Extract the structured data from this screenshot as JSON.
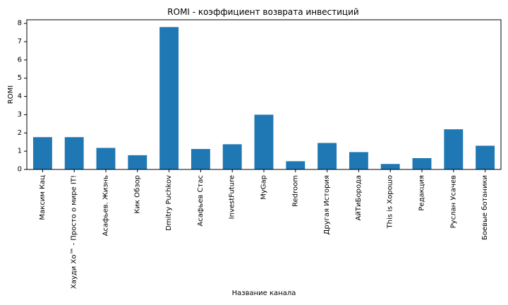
{
  "chart_data": {
    "type": "bar",
    "title": "ROMI - коэффициент возврата инвестиций",
    "xlabel": "Название канала",
    "ylabel": "ROMI",
    "categories": [
      "Максим Кац",
      "Хауди Хо™ - Просто о мире IT!",
      "Асафьев. Жизнь",
      "Кик Обзор",
      "Dmitry Puchkov",
      "Асафьев Стас",
      "InvestFuture",
      "MyGap",
      "Redroom",
      "Другая История",
      "АйТиБорода",
      "This is Хорошо",
      "Редакция",
      "Руслан Усачев",
      "Боевые ботаники"
    ],
    "values": [
      1.77,
      1.77,
      1.18,
      0.78,
      7.8,
      1.12,
      1.38,
      3.0,
      0.45,
      1.45,
      0.95,
      0.3,
      0.62,
      2.2,
      1.3
    ],
    "ylim": [
      0,
      8.2
    ],
    "yticks": [
      0,
      1,
      2,
      3,
      4,
      5,
      6,
      7,
      8
    ],
    "grid": false,
    "legend": "none",
    "bar_color": "#1f77b4"
  }
}
